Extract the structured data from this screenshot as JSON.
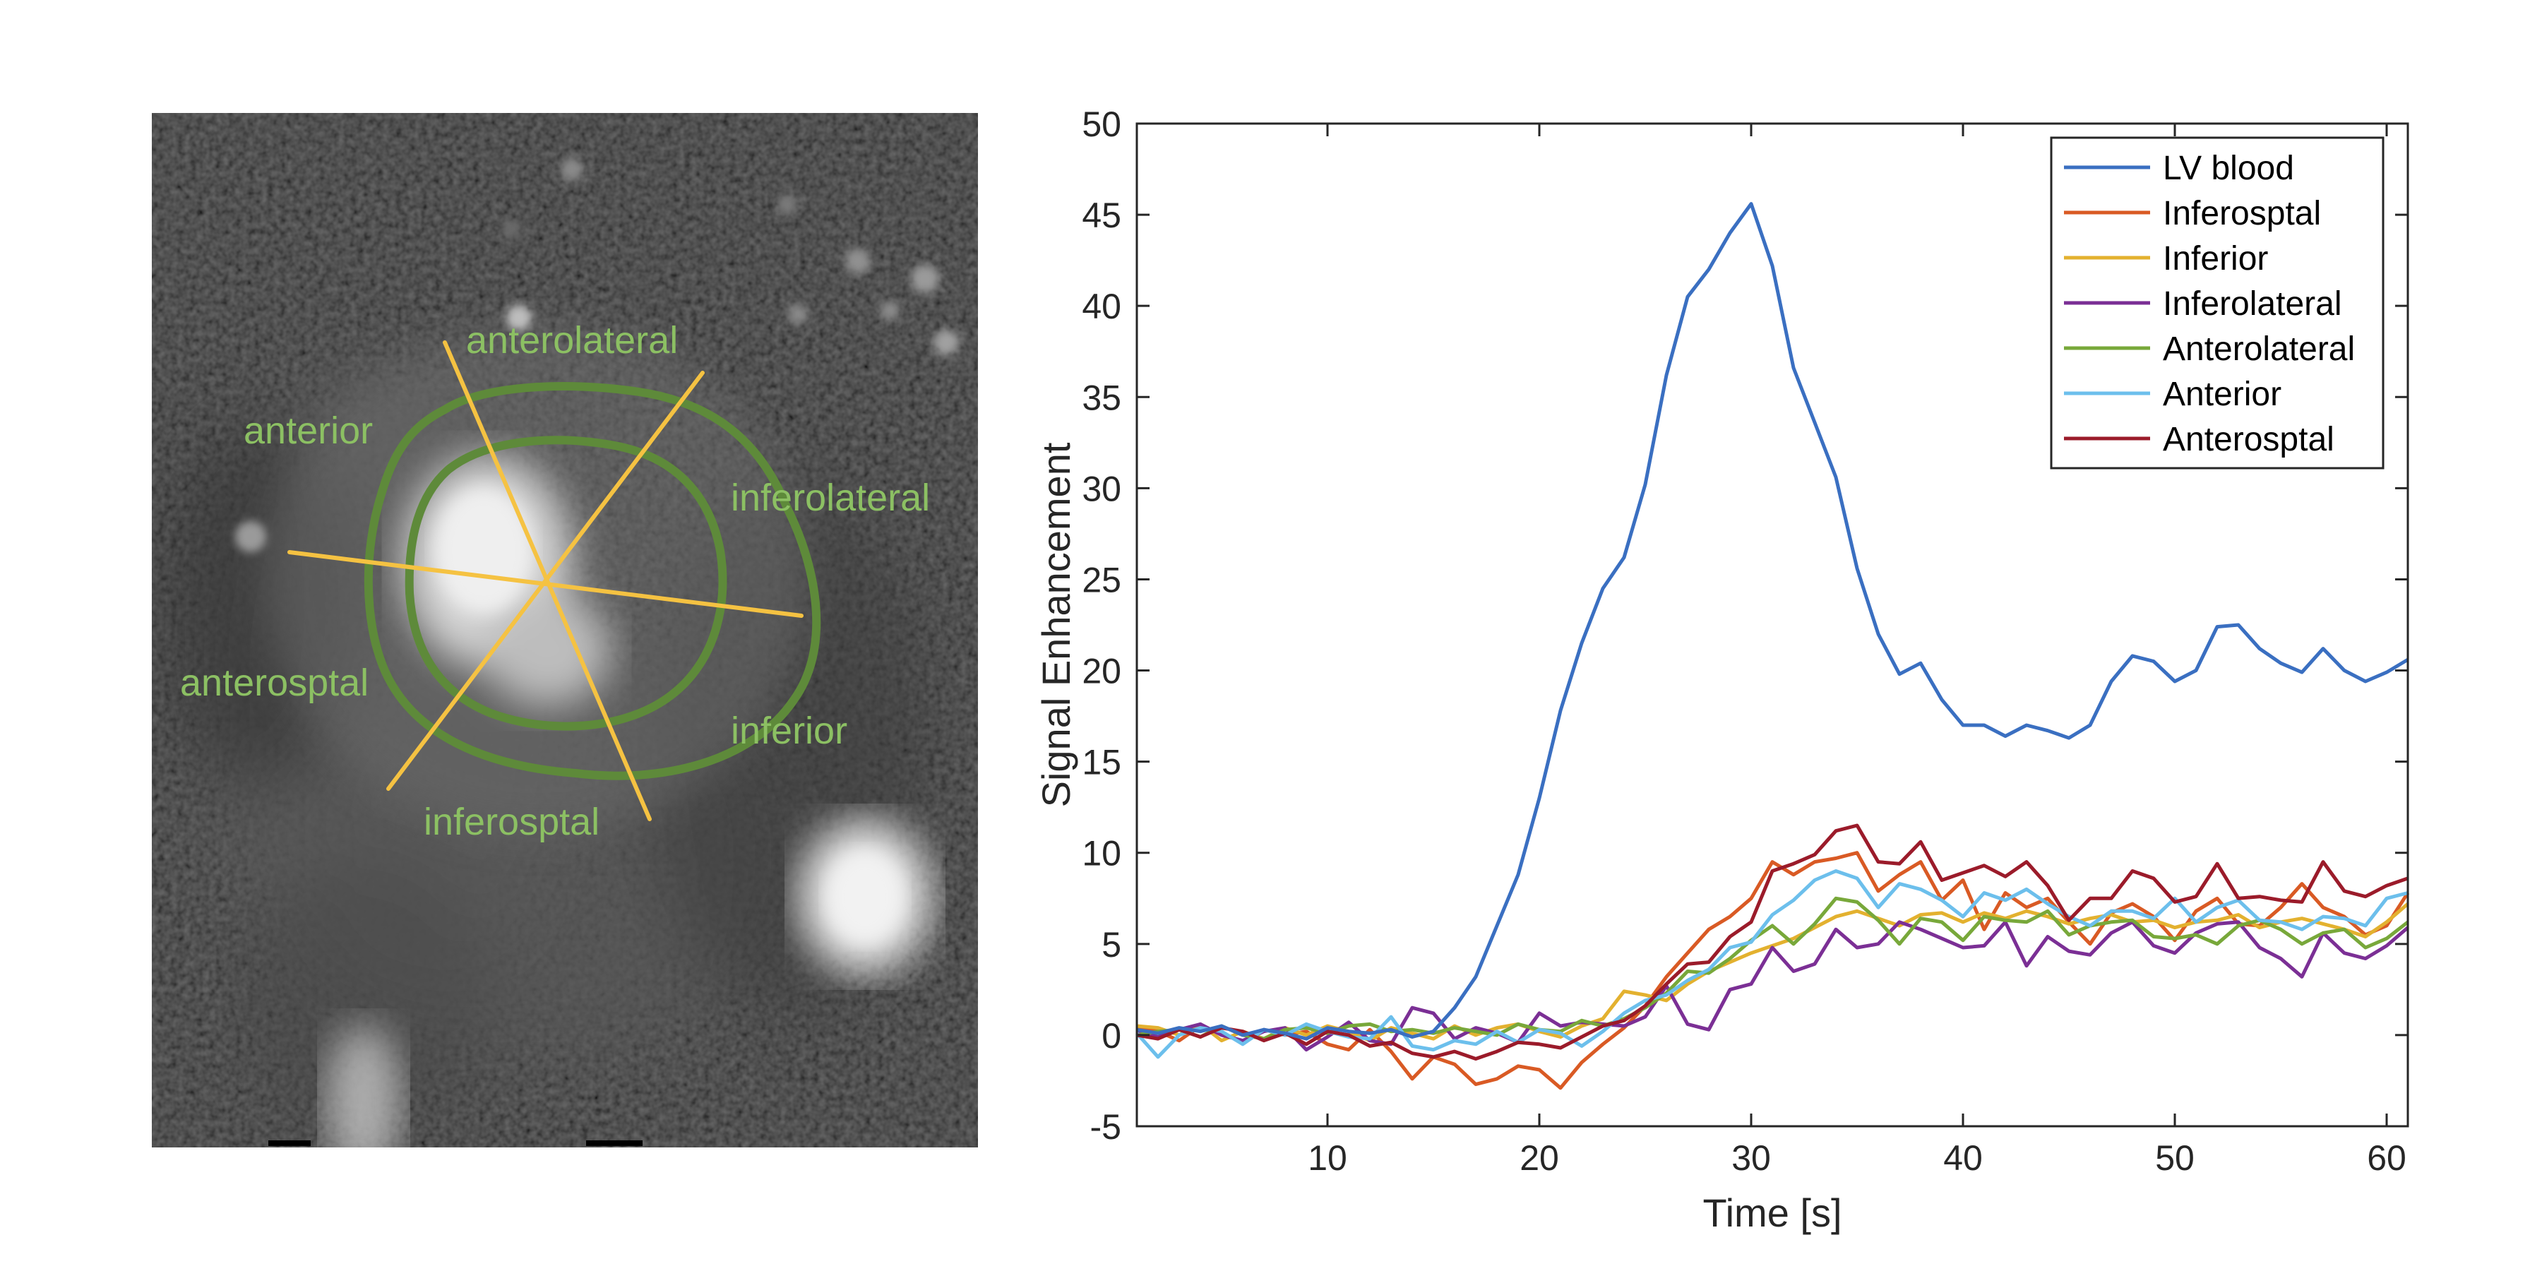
{
  "figure": {
    "segment_labels": {
      "anterolateral": "anterolateral",
      "anterior": "anterior",
      "inferolateral": "inferolateral",
      "anterosptal": "anterosptal",
      "inferior": "inferior",
      "inferosptal": "inferosptal"
    },
    "colors": {
      "contour": "#5e8a3a",
      "segment_lines": "#f5c242",
      "label_text": "#8cc063"
    }
  },
  "chart_data": {
    "type": "line",
    "title": "",
    "xlabel": "Time [s]",
    "ylabel": "Signal Enhancement",
    "xlim": [
      1,
      61
    ],
    "ylim": [
      -5,
      50
    ],
    "xticks": [
      10,
      20,
      30,
      40,
      50,
      60
    ],
    "yticks": [
      -5,
      0,
      5,
      10,
      15,
      20,
      25,
      30,
      35,
      40,
      45,
      50
    ],
    "grid": false,
    "legend_position": "top-right",
    "x": [
      1,
      2,
      3,
      4,
      5,
      6,
      7,
      8,
      9,
      10,
      11,
      12,
      13,
      14,
      15,
      16,
      17,
      18,
      19,
      20,
      21,
      22,
      23,
      24,
      25,
      26,
      27,
      28,
      29,
      30,
      31,
      32,
      33,
      34,
      35,
      36,
      37,
      38,
      39,
      40,
      41,
      42,
      43,
      44,
      45,
      46,
      47,
      48,
      49,
      50,
      51,
      52,
      53,
      54,
      55,
      56,
      57,
      58,
      59,
      60,
      61
    ],
    "series": [
      {
        "name": "LV blood",
        "color": "#3a6fc1",
        "values": [
          0.3,
          0.1,
          0.4,
          0.2,
          0.5,
          0.0,
          0.3,
          0.1,
          -0.2,
          0.4,
          0.2,
          0.1,
          0.3,
          -0.1,
          0.2,
          1.5,
          3.2,
          6.0,
          8.8,
          13.0,
          17.8,
          21.5,
          24.5,
          26.2,
          30.2,
          36.2,
          40.5,
          42.0,
          44.0,
          45.6,
          42.2,
          36.6,
          33.6,
          30.6,
          25.6,
          22.0,
          19.8,
          20.4,
          18.4,
          17.0,
          17.0,
          16.4,
          17.0,
          16.7,
          16.3,
          17.0,
          19.4,
          20.8,
          20.5,
          19.4,
          20.0,
          22.4,
          22.5,
          21.2,
          20.4,
          19.9,
          21.2,
          20.0,
          19.4,
          19.9,
          20.6
        ]
      },
      {
        "name": "Inferosptal",
        "color": "#d95a24",
        "values": [
          0.4,
          0.2,
          -0.3,
          0.5,
          0.1,
          -0.4,
          0.3,
          0.0,
          0.2,
          -0.5,
          -0.8,
          0.3,
          -0.9,
          -2.4,
          -1.2,
          -1.6,
          -2.7,
          -2.4,
          -1.7,
          -1.9,
          -2.9,
          -1.5,
          -0.5,
          0.4,
          1.6,
          3.2,
          4.5,
          5.8,
          6.5,
          7.5,
          9.5,
          8.8,
          9.5,
          9.7,
          10.0,
          7.9,
          8.8,
          9.5,
          7.4,
          8.5,
          5.8,
          7.8,
          7.0,
          7.5,
          6.2,
          5.0,
          6.7,
          7.2,
          6.5,
          5.2,
          6.8,
          7.5,
          6.1,
          6.0,
          7.0,
          8.3,
          7.0,
          6.5,
          5.5,
          6.0,
          7.8
        ]
      },
      {
        "name": "Inferior",
        "color": "#e3b12f",
        "values": [
          0.5,
          0.4,
          0.0,
          0.6,
          -0.3,
          0.2,
          -0.2,
          0.4,
          0.0,
          0.5,
          0.2,
          -0.3,
          0.4,
          0.1,
          -0.2,
          0.5,
          0.0,
          0.4,
          0.6,
          0.2,
          -0.1,
          0.5,
          0.9,
          2.4,
          2.2,
          1.9,
          2.8,
          3.5,
          4.0,
          4.5,
          4.9,
          5.3,
          5.9,
          6.5,
          6.8,
          6.4,
          6.0,
          6.6,
          6.7,
          6.2,
          6.7,
          6.4,
          6.8,
          6.5,
          6.1,
          6.4,
          6.6,
          6.2,
          6.3,
          5.9,
          6.2,
          6.3,
          6.6,
          5.9,
          6.2,
          6.4,
          6.1,
          5.8,
          5.4,
          6.2,
          7.2
        ]
      },
      {
        "name": "Inferolateral",
        "color": "#7b2f95",
        "values": [
          0.2,
          -0.1,
          0.3,
          0.6,
          0.0,
          -0.3,
          0.2,
          0.4,
          -0.8,
          -0.1,
          0.7,
          -0.3,
          -0.5,
          1.5,
          1.2,
          -0.2,
          0.4,
          0.1,
          -0.4,
          1.2,
          0.5,
          0.7,
          0.6,
          0.5,
          1.0,
          2.7,
          0.6,
          0.3,
          2.5,
          2.8,
          4.8,
          3.5,
          3.9,
          5.8,
          4.8,
          5.0,
          6.2,
          5.8,
          5.3,
          4.8,
          4.9,
          6.2,
          3.8,
          5.4,
          4.6,
          4.4,
          5.6,
          6.2,
          4.9,
          4.5,
          5.6,
          6.1,
          6.2,
          4.8,
          4.2,
          3.2,
          5.6,
          4.5,
          4.2,
          4.9,
          5.9
        ]
      },
      {
        "name": "Anterolateral",
        "color": "#78a83a",
        "values": [
          0.0,
          0.2,
          0.3,
          -0.1,
          0.5,
          0.0,
          -0.2,
          0.3,
          0.4,
          0.1,
          0.5,
          0.6,
          0.2,
          0.3,
          0.1,
          0.4,
          0.2,
          0.0,
          0.6,
          0.3,
          0.2,
          0.8,
          0.5,
          0.9,
          1.5,
          2.3,
          3.5,
          3.4,
          4.2,
          5.2,
          6.0,
          5.0,
          6.1,
          7.5,
          7.3,
          6.3,
          5.0,
          6.4,
          6.2,
          5.2,
          6.5,
          6.3,
          6.2,
          6.8,
          5.5,
          6.0,
          6.2,
          6.3,
          5.4,
          5.3,
          5.5,
          5.0,
          6.0,
          6.3,
          5.8,
          5.0,
          5.6,
          5.8,
          4.8,
          5.3,
          6.2
        ]
      },
      {
        "name": "Anterior",
        "color": "#6cbfec",
        "values": [
          0.1,
          -1.2,
          0.0,
          0.4,
          0.2,
          -0.5,
          0.3,
          0.0,
          0.6,
          0.2,
          -0.1,
          -0.2,
          1.0,
          -0.6,
          -0.8,
          -0.3,
          -0.5,
          0.2,
          -0.4,
          0.3,
          0.1,
          -0.6,
          0.2,
          1.2,
          1.9,
          2.2,
          3.0,
          3.6,
          4.8,
          5.1,
          6.6,
          7.4,
          8.5,
          9.0,
          8.6,
          7.0,
          8.3,
          8.0,
          7.4,
          6.5,
          7.8,
          7.4,
          8.0,
          7.2,
          6.5,
          6.0,
          6.8,
          6.8,
          6.4,
          7.5,
          6.2,
          7.0,
          7.4,
          6.3,
          6.2,
          5.8,
          6.5,
          6.4,
          6.0,
          7.5,
          7.8
        ]
      },
      {
        "name": "Anterosptal",
        "color": "#9b1b2a",
        "values": [
          0.0,
          -0.2,
          0.3,
          -0.1,
          0.4,
          0.2,
          -0.3,
          0.1,
          -0.5,
          0.2,
          0.0,
          -0.6,
          -0.4,
          -1.0,
          -1.2,
          -0.9,
          -1.3,
          -0.9,
          -0.4,
          -0.5,
          -0.7,
          -0.1,
          0.5,
          0.8,
          1.6,
          2.8,
          3.9,
          4.0,
          5.4,
          6.2,
          9.0,
          9.4,
          9.9,
          11.2,
          11.5,
          9.5,
          9.4,
          10.6,
          8.5,
          8.9,
          9.3,
          8.7,
          9.5,
          8.2,
          6.3,
          7.5,
          7.5,
          9.0,
          8.6,
          7.3,
          7.6,
          9.4,
          7.5,
          7.6,
          7.4,
          7.3,
          9.5,
          7.9,
          7.6,
          8.2,
          8.6
        ]
      }
    ]
  }
}
